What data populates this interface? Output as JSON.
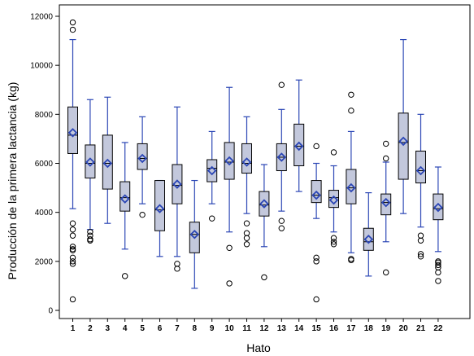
{
  "chart_data": {
    "type": "box",
    "xlabel": "Hato",
    "ylabel": "Producción de la primera lactancia (kg)",
    "ylim": [
      0,
      12000
    ],
    "yticks": [
      0,
      2000,
      4000,
      6000,
      8000,
      10000,
      12000
    ],
    "grid": false,
    "legend": "none",
    "colors": {
      "box_fill": "#c3c8dc",
      "whisker": "#2b46b5",
      "mean_marker": "#2b46b5",
      "outlier": "#000000",
      "frame": "#000000"
    },
    "categories": [
      "1",
      "2",
      "3",
      "4",
      "5",
      "6",
      "7",
      "8",
      "9",
      "10",
      "11",
      "12",
      "13",
      "14",
      "15",
      "16",
      "17",
      "18",
      "19",
      "20",
      "21",
      "22"
    ],
    "boxes": [
      {
        "category": "1",
        "min": 4150,
        "q1": 6400,
        "median": 7150,
        "q3": 8300,
        "max": 11050,
        "mean": 7250,
        "outliers": [
          11750,
          11450,
          3550,
          3300,
          3050,
          2600,
          2500,
          2450,
          2150,
          2000,
          1900,
          450
        ]
      },
      {
        "category": "2",
        "min": 3300,
        "q1": 5400,
        "median": 6000,
        "q3": 6750,
        "max": 8600,
        "mean": 6050,
        "outliers": [
          3200,
          3050,
          2900,
          2850
        ]
      },
      {
        "category": "3",
        "min": 3550,
        "q1": 4950,
        "median": 6000,
        "q3": 7150,
        "max": 8700,
        "mean": 6000,
        "outliers": []
      },
      {
        "category": "4",
        "min": 2500,
        "q1": 4050,
        "median": 4600,
        "q3": 5250,
        "max": 6850,
        "mean": 4550,
        "outliers": [
          1400
        ]
      },
      {
        "category": "5",
        "min": 4350,
        "q1": 5750,
        "median": 6200,
        "q3": 6800,
        "max": 7900,
        "mean": 6200,
        "outliers": [
          3900
        ]
      },
      {
        "category": "6",
        "min": 2200,
        "q1": 3250,
        "median": 4100,
        "q3": 5300,
        "max": 5300,
        "mean": 4150,
        "outliers": []
      },
      {
        "category": "7",
        "min": 2200,
        "q1": 4350,
        "median": 5100,
        "q3": 5950,
        "max": 8300,
        "mean": 5150,
        "outliers": [
          1900,
          1700
        ]
      },
      {
        "category": "8",
        "min": 900,
        "q1": 2350,
        "median": 3100,
        "q3": 3600,
        "max": 5300,
        "mean": 3100,
        "outliers": []
      },
      {
        "category": "9",
        "min": 4350,
        "q1": 5250,
        "median": 5800,
        "q3": 6150,
        "max": 7300,
        "mean": 5700,
        "outliers": [
          3750
        ]
      },
      {
        "category": "10",
        "min": 3200,
        "q1": 5350,
        "median": 6050,
        "q3": 6850,
        "max": 9100,
        "mean": 6100,
        "outliers": [
          2550,
          1100
        ]
      },
      {
        "category": "11",
        "min": 3950,
        "q1": 5600,
        "median": 6000,
        "q3": 6800,
        "max": 7900,
        "mean": 6050,
        "outliers": [
          3550,
          3150,
          2950,
          2700
        ]
      },
      {
        "category": "12",
        "min": 2600,
        "q1": 3850,
        "median": 4300,
        "q3": 4850,
        "max": 5950,
        "mean": 4350,
        "outliers": [
          1350
        ]
      },
      {
        "category": "13",
        "min": 4050,
        "q1": 5700,
        "median": 6250,
        "q3": 6800,
        "max": 8200,
        "mean": 6250,
        "outliers": [
          9200,
          3650,
          3350
        ]
      },
      {
        "category": "14",
        "min": 4850,
        "q1": 5900,
        "median": 6700,
        "q3": 7600,
        "max": 9400,
        "mean": 6700,
        "outliers": []
      },
      {
        "category": "15",
        "min": 3750,
        "q1": 4400,
        "median": 4700,
        "q3": 5300,
        "max": 6000,
        "mean": 4700,
        "outliers": [
          6700,
          2150,
          2000,
          450
        ]
      },
      {
        "category": "16",
        "min": 3200,
        "q1": 4200,
        "median": 4600,
        "q3": 4900,
        "max": 5900,
        "mean": 4500,
        "outliers": [
          6450,
          2950,
          2800,
          2700
        ]
      },
      {
        "category": "17",
        "min": 2350,
        "q1": 4350,
        "median": 5000,
        "q3": 5750,
        "max": 7300,
        "mean": 5000,
        "outliers": [
          8800,
          8150,
          2100,
          2050
        ]
      },
      {
        "category": "18",
        "min": 1400,
        "q1": 2450,
        "median": 2800,
        "q3": 3350,
        "max": 4800,
        "mean": 2900,
        "outliers": []
      },
      {
        "category": "19",
        "min": 2800,
        "q1": 3900,
        "median": 4400,
        "q3": 4750,
        "max": 6050,
        "mean": 4400,
        "outliers": [
          6800,
          6200,
          1550
        ]
      },
      {
        "category": "20",
        "min": 3950,
        "q1": 5350,
        "median": 6850,
        "q3": 8050,
        "max": 11050,
        "mean": 6900,
        "outliers": []
      },
      {
        "category": "21",
        "min": 3400,
        "q1": 5200,
        "median": 5700,
        "q3": 6500,
        "max": 8000,
        "mean": 5700,
        "outliers": [
          3050,
          2850,
          2300,
          2200
        ]
      },
      {
        "category": "22",
        "min": 2400,
        "q1": 3700,
        "median": 4150,
        "q3": 4750,
        "max": 5850,
        "mean": 4200,
        "outliers": [
          1950,
          1850,
          1750,
          1550,
          1200,
          2000
        ]
      }
    ]
  }
}
